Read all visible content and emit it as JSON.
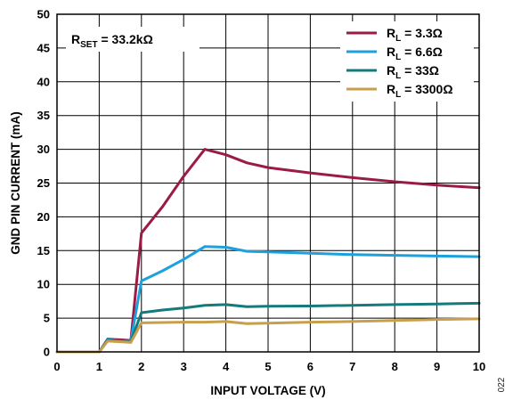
{
  "chart_data": {
    "type": "line",
    "xlabel": "INPUT VOLTAGE (V)",
    "ylabel": "GND PIN CURRENT (mA)",
    "xlim": [
      0,
      10
    ],
    "ylim": [
      0,
      50
    ],
    "xticks": [
      "0",
      "1",
      "2",
      "3",
      "4",
      "5",
      "6",
      "7",
      "8",
      "9",
      "10"
    ],
    "yticks": [
      "0",
      "5",
      "10",
      "15",
      "20",
      "25",
      "30",
      "35",
      "40",
      "45",
      "50"
    ],
    "grid": true,
    "legend_position": "top-right",
    "annotation": {
      "main": "R",
      "sub": "SET",
      "rest": " = 33.2kΩ"
    },
    "figure_number": "022",
    "series": [
      {
        "legend_main": "R",
        "legend_sub": "L",
        "legend_rest": " = 3.3Ω",
        "color": "#9b1b48",
        "x": [
          0,
          1.0,
          1.2,
          1.5,
          1.75,
          2.0,
          2.5,
          3.0,
          3.5,
          4.0,
          4.5,
          5.0,
          6.0,
          7.0,
          8.0,
          9.0,
          10.0
        ],
        "y": [
          0,
          0,
          1.9,
          1.8,
          1.7,
          17.6,
          21.5,
          26.0,
          30.0,
          29.2,
          28.0,
          27.3,
          26.5,
          25.8,
          25.2,
          24.7,
          24.3
        ]
      },
      {
        "legend_main": "R",
        "legend_sub": "L",
        "legend_rest": " = 6.6Ω",
        "color": "#1da1dd",
        "x": [
          0,
          1.0,
          1.2,
          1.5,
          1.75,
          2.0,
          2.5,
          3.0,
          3.5,
          4.0,
          4.5,
          5.0,
          6.0,
          7.0,
          8.0,
          9.0,
          10.0
        ],
        "y": [
          0,
          0,
          1.8,
          1.6,
          1.6,
          10.5,
          12.0,
          13.7,
          15.6,
          15.5,
          14.9,
          14.8,
          14.6,
          14.4,
          14.3,
          14.2,
          14.1
        ]
      },
      {
        "legend_main": "R",
        "legend_sub": "L",
        "legend_rest": " = 33Ω",
        "color": "#147a7c",
        "x": [
          0,
          1.0,
          1.2,
          1.5,
          1.75,
          2.0,
          2.5,
          3.0,
          3.5,
          4.0,
          4.5,
          5.0,
          6.0,
          7.0,
          8.0,
          9.0,
          10.0
        ],
        "y": [
          0,
          0,
          1.7,
          1.6,
          1.5,
          5.8,
          6.2,
          6.5,
          6.9,
          7.0,
          6.7,
          6.75,
          6.8,
          6.9,
          7.0,
          7.1,
          7.2
        ]
      },
      {
        "legend_main": "R",
        "legend_sub": "L",
        "legend_rest": " = 3300Ω",
        "color": "#c8a04c",
        "x": [
          0,
          1.0,
          1.2,
          1.5,
          1.75,
          2.0,
          2.5,
          3.0,
          3.5,
          4.0,
          4.5,
          5.0,
          6.0,
          7.0,
          8.0,
          9.0,
          10.0
        ],
        "y": [
          0,
          0,
          1.6,
          1.5,
          1.4,
          4.3,
          4.35,
          4.4,
          4.4,
          4.5,
          4.2,
          4.25,
          4.4,
          4.5,
          4.65,
          4.8,
          4.9
        ]
      }
    ]
  }
}
